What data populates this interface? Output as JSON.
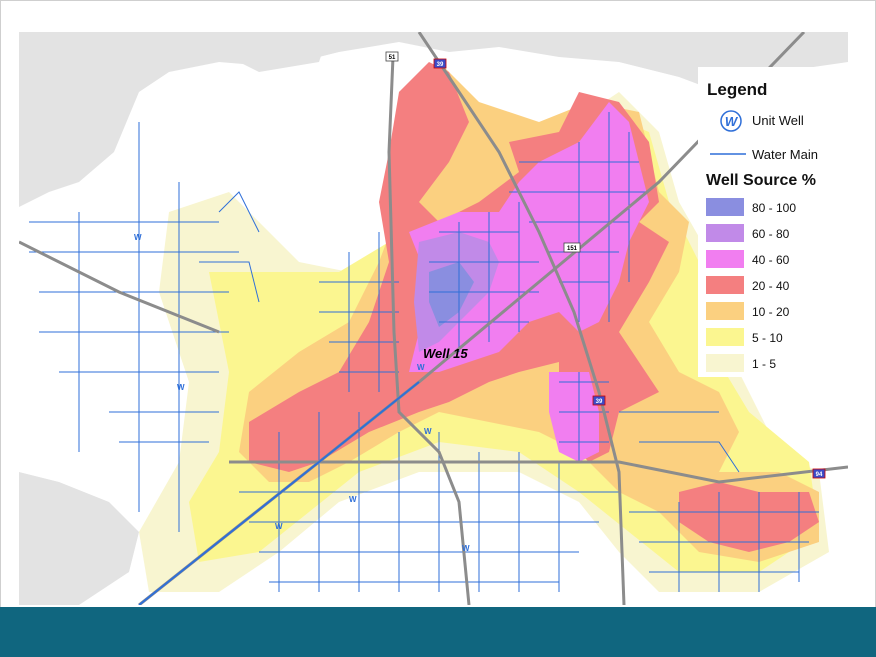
{
  "legend": {
    "title": "Legend",
    "unit_well_label": "Unit Well",
    "water_main_label": "Water Main",
    "well_source_title": "Well Source %",
    "unit_well_symbol": "W",
    "classes": [
      {
        "range": "80 - 100",
        "color": "#8a8ee0"
      },
      {
        "range": "60 - 80",
        "color": "#c18ae8"
      },
      {
        "range": "40 - 60",
        "color": "#f17ef0"
      },
      {
        "range": "20 - 40",
        "color": "#f47f80"
      },
      {
        "range": "10 - 20",
        "color": "#fbd080"
      },
      {
        "range": "5 - 10",
        "color": "#fbf690"
      },
      {
        "range": "1 - 5",
        "color": "#f8f5d0"
      }
    ]
  },
  "map": {
    "well_label": "Well 15",
    "well_symbol": "W",
    "highway_shields": [
      "51",
      "39",
      "151",
      "39",
      "94"
    ],
    "colors": {
      "water_main": "#2f6fd8",
      "highway": "#8c8c8c",
      "background": "#e3e3e3",
      "urban": "#ffffff",
      "footer": "#10667f"
    }
  }
}
